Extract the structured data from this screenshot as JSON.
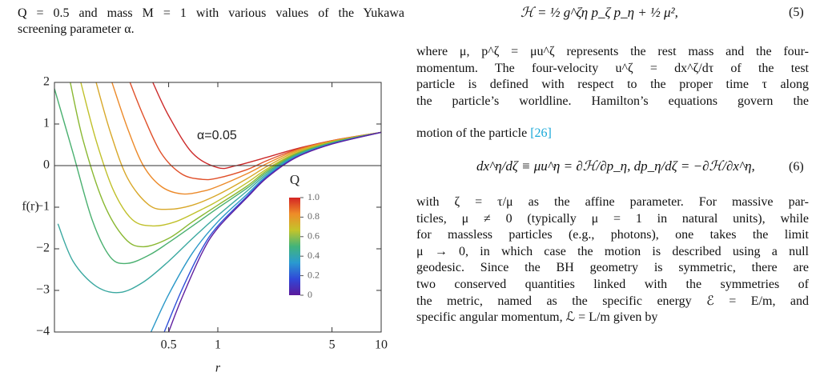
{
  "left_text": {
    "lines": [
      "Q = 0.5 and mass M = 1 with various values of the Yukawa",
      "screening parameter α."
    ]
  },
  "chart_data": {
    "type": "line",
    "xlabel": "r",
    "ylabel": "f(r)",
    "xscale": "log",
    "xlim": [
      0.1,
      10
    ],
    "ylim": [
      -4,
      2
    ],
    "xticks": [
      0.5,
      1,
      5,
      10
    ],
    "yticks": [
      -4,
      -3,
      -2,
      -1,
      0,
      1,
      2
    ],
    "annotation": "α=0.05",
    "colorbar": {
      "label": "Q",
      "ticks": [
        0,
        0.2,
        0.4,
        0.6,
        0.8,
        {
          "value": 1,
          "label": "1.0"
        }
      ],
      "colors": [
        "#5b1a9c",
        "#3048d8",
        "#2a9ad0",
        "#42b47a",
        "#c4c42a",
        "#ee8c28",
        "#d42424"
      ]
    },
    "series": [
      {
        "color": "#cc2a2a",
        "x": [
          0.4,
          0.5,
          0.7,
          1,
          1.3,
          2,
          3,
          5,
          10
        ],
        "values": [
          2,
          1.2,
          0.3,
          -0.05,
          0,
          0.2,
          0.4,
          0.6,
          0.8
        ]
      },
      {
        "color": "#e0502a",
        "x": [
          0.29,
          0.35,
          0.45,
          0.6,
          0.8,
          1,
          1.5,
          2,
          3,
          5,
          10
        ],
        "values": [
          2,
          1.2,
          0.3,
          -0.2,
          -0.33,
          -0.3,
          -0.1,
          0.12,
          0.38,
          0.6,
          0.8
        ]
      },
      {
        "color": "#ec8a2a",
        "x": [
          0.225,
          0.28,
          0.35,
          0.45,
          0.6,
          0.8,
          1,
          1.5,
          2,
          3,
          5,
          10
        ],
        "values": [
          2,
          0.9,
          0,
          -0.5,
          -0.68,
          -0.62,
          -0.5,
          -0.2,
          0.05,
          0.36,
          0.59,
          0.8
        ]
      },
      {
        "color": "#d8a82a",
        "x": [
          0.18,
          0.22,
          0.28,
          0.38,
          0.5,
          0.7,
          1,
          1.5,
          2,
          3,
          5,
          10
        ],
        "values": [
          2,
          0.8,
          -0.3,
          -0.95,
          -1.05,
          -0.95,
          -0.7,
          -0.32,
          -0.02,
          0.33,
          0.58,
          0.8
        ]
      },
      {
        "color": "#c0c02a",
        "x": [
          0.145,
          0.18,
          0.23,
          0.3,
          0.4,
          0.55,
          0.8,
          1,
          1.5,
          2,
          3,
          5,
          10
        ],
        "values": [
          2,
          0.6,
          -0.6,
          -1.3,
          -1.45,
          -1.35,
          -1.05,
          -0.85,
          -0.42,
          -0.08,
          0.3,
          0.57,
          0.8
        ]
      },
      {
        "color": "#8ab832",
        "x": [
          0.125,
          0.15,
          0.2,
          0.27,
          0.35,
          0.5,
          0.7,
          1,
          1.5,
          2,
          3,
          5,
          10
        ],
        "values": [
          2,
          0.6,
          -0.9,
          -1.75,
          -1.95,
          -1.75,
          -1.35,
          -0.95,
          -0.5,
          -0.12,
          0.28,
          0.56,
          0.8
        ]
      },
      {
        "color": "#4ab070",
        "x": [
          0.1,
          0.13,
          0.17,
          0.22,
          0.28,
          0.38,
          0.5,
          0.7,
          1,
          1.5,
          2,
          3,
          5,
          10
        ],
        "values": [
          1.85,
          0.3,
          -1.3,
          -2.2,
          -2.35,
          -2.15,
          -1.85,
          -1.45,
          -1.02,
          -0.55,
          -0.16,
          0.26,
          0.55,
          0.8
        ]
      },
      {
        "color": "#3aa8a0",
        "x": [
          0.105,
          0.13,
          0.18,
          0.25,
          0.35,
          0.5,
          0.7,
          1,
          1.5,
          2,
          3,
          5,
          10
        ],
        "values": [
          -1.4,
          -2.3,
          -2.9,
          -3.05,
          -2.8,
          -2.3,
          -1.75,
          -1.2,
          -0.62,
          -0.2,
          0.24,
          0.54,
          0.8
        ]
      },
      {
        "color": "#2a98c8",
        "x": [
          0.39,
          0.5,
          0.7,
          1,
          1.5,
          2,
          3,
          5,
          10
        ],
        "values": [
          -4,
          -3.1,
          -2.1,
          -1.35,
          -0.7,
          -0.24,
          0.22,
          0.53,
          0.8
        ]
      },
      {
        "color": "#3050d8",
        "x": [
          0.47,
          0.6,
          0.8,
          1,
          1.5,
          2,
          3,
          5,
          10
        ],
        "values": [
          -4,
          -3,
          -2,
          -1.45,
          -0.75,
          -0.27,
          0.2,
          0.52,
          0.8
        ]
      },
      {
        "color": "#6020a0",
        "x": [
          0.5,
          0.6,
          0.8,
          1,
          1.5,
          2,
          3,
          5,
          10
        ],
        "values": [
          -4,
          -3.2,
          -2.1,
          -1.5,
          -0.78,
          -0.29,
          0.19,
          0.52,
          0.8
        ]
      }
    ]
  },
  "right_text": {
    "eq5": {
      "formula": "ℋ = ½ g^ζη p_ζ p_η + ½ μ²,",
      "number": "(5)"
    },
    "para1": [
      "where μ, p^ζ = μu^ζ represents the rest mass and the four-",
      "momentum. The four-velocity u^ζ = dx^ζ/dτ of the test",
      "particle is defined with respect to the proper time τ along",
      "the particle’s worldline. Hamilton’s equations govern the"
    ],
    "para1_last": "motion of the particle ",
    "cite": "[26]",
    "eq6": {
      "formula": "dx^η/dζ ≡ μu^η = ∂ℋ/∂p_η,    dp_η/dζ = −∂ℋ/∂x^η,",
      "number": "(6)"
    },
    "para2": [
      "with ζ = τ/μ as the affine parameter. For massive par-",
      "ticles, μ ≠ 0 (typically μ = 1 in natural units), while",
      "for massless particles (e.g., photons), one takes the limit",
      "μ → 0, in which case the motion is described using a null",
      "geodesic. Since the BH geometry is symmetric, there are",
      "two conserved quantities linked with the symmetries of",
      "the metric, named as the specific energy ℰ = E/m, and",
      "specific angular momentum, ℒ = L/m given by"
    ]
  }
}
